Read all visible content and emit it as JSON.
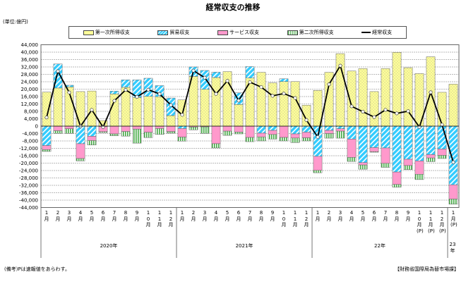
{
  "title": "経常収支の推移",
  "unit": "(単位:億円)",
  "footnote": "(備考)Pは速報値をあらわす。",
  "source": "【財務省国際局為替市場課】",
  "colors": {
    "primary_income": "#ffff99",
    "trade": "#33ccff",
    "services": "#ff99cc",
    "secondary_income": "#66bb66",
    "current": "#000000"
  },
  "chart_data": {
    "type": "bar",
    "title": "経常収支の推移",
    "ylabel": "(単位:億円)",
    "ylim": [
      -44000,
      44000
    ],
    "ytick_step": 4000,
    "yticks": [
      "44,000",
      "40,000",
      "36,000",
      "32,000",
      "28,000",
      "24,000",
      "20,000",
      "16,000",
      "12,000",
      "8,000",
      "4,000",
      "0",
      "-4,000",
      "-8,000",
      "-12,000",
      "-16,000",
      "-20,000",
      "-24,000",
      "-28,000",
      "-32,000",
      "-36,000",
      "-40,000",
      "-44,000"
    ],
    "grid": true,
    "legend_position": "top",
    "categories": [
      "1月",
      "2月",
      "3月",
      "4月",
      "5月",
      "6月",
      "7月",
      "8月",
      "9月",
      "10月",
      "11月",
      "12月",
      "1月",
      "2月",
      "3月",
      "4月",
      "5月",
      "6月",
      "7月",
      "8月",
      "9月",
      "10月",
      "11月",
      "12月",
      "1月",
      "2月",
      "3月",
      "4月",
      "5月",
      "6月",
      "7月",
      "8月",
      "9月",
      "10月(P)",
      "11月(P)",
      "12月(P)",
      "1月(P)"
    ],
    "year_groups": [
      {
        "label": "2020年",
        "count": 12
      },
      {
        "label": "2021年",
        "count": 12
      },
      {
        "label": "22年",
        "count": 12
      },
      {
        "label": "23年",
        "count": 1
      }
    ],
    "series": [
      {
        "name": "第一次所得収支",
        "kind": "bar",
        "values": [
          18400,
          20600,
          21200,
          18700,
          19000,
          3000,
          17400,
          21000,
          15500,
          16100,
          15900,
          5700,
          14200,
          26900,
          19900,
          26300,
          29500,
          11700,
          26000,
          29100,
          23400,
          24100,
          24100,
          11300,
          19300,
          29100,
          39200,
          29800,
          31100,
          18700,
          31100,
          39900,
          31600,
          28400,
          37500,
          18300,
          22700
        ]
      },
      {
        "name": "貿易収支",
        "kind": "bar",
        "values": [
          -10500,
          13000,
          900,
          -9500,
          -5500,
          -200,
          1500,
          4000,
          9500,
          9800,
          6000,
          9500,
          -1300,
          5100,
          10200,
          2900,
          0,
          6300,
          6200,
          -3800,
          -2300,
          1500,
          -4200,
          -3300,
          -16300,
          -2300,
          -1400,
          -7000,
          -19700,
          -11600,
          -11800,
          -24800,
          -17900,
          -18800,
          -15400,
          -12400,
          -31700
        ]
      },
      {
        "name": "サービス収支",
        "kind": "bar",
        "values": [
          -2200,
          -2500,
          -1400,
          -8000,
          -2300,
          -2800,
          -4200,
          -2900,
          -1600,
          -3300,
          -1300,
          -2900,
          -4600,
          -500,
          -400,
          -9500,
          -2700,
          -3200,
          -6100,
          -2000,
          -2200,
          -6100,
          -2200,
          -3000,
          -7600,
          -1700,
          -1300,
          -9900,
          -1300,
          -2200,
          -8300,
          -6700,
          -3400,
          -7200,
          -1800,
          -3400,
          -7700
        ]
      },
      {
        "name": "第二次所得収支",
        "kind": "bar",
        "values": [
          -1000,
          -1400,
          -2500,
          -1300,
          -2400,
          -500,
          -1000,
          -2500,
          -7600,
          -2900,
          -3200,
          -900,
          -2200,
          -1500,
          -3500,
          -2300,
          -2300,
          -1000,
          -2300,
          -2200,
          -2500,
          -1900,
          -2500,
          -1700,
          -1300,
          -2500,
          -3800,
          -2200,
          -2300,
          -300,
          -2200,
          -1500,
          -2200,
          -2900,
          -2000,
          -1700,
          -2800
        ]
      },
      {
        "name": "経常収支",
        "kind": "line",
        "values": [
          4700,
          29700,
          18200,
          -100,
          8800,
          -500,
          13700,
          19600,
          15800,
          19700,
          17400,
          11400,
          6100,
          30000,
          26200,
          17400,
          24500,
          13800,
          23800,
          21100,
          16400,
          17600,
          15200,
          3300,
          -5900,
          22600,
          32700,
          10700,
          7800,
          4900,
          8800,
          6900,
          8100,
          -500,
          18300,
          800,
          -19500
        ]
      }
    ]
  }
}
